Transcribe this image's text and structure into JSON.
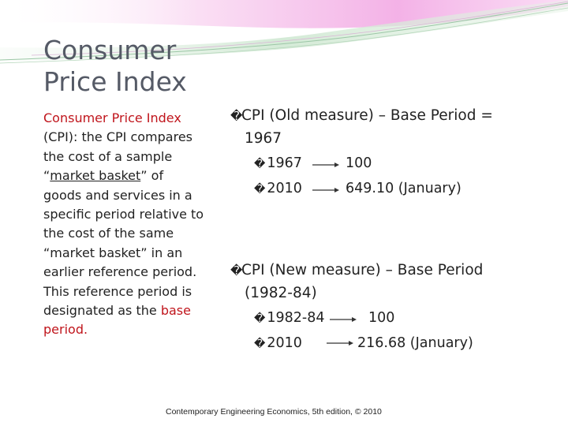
{
  "title": {
    "line1": "Consumer",
    "line2": "Price Index"
  },
  "left_text": {
    "l1": "Consumer Price Index",
    "l2": "(CPI): the CPI compares",
    "l3": "the cost of a sample",
    "l4_open": "“",
    "l4_ul": "market basket",
    "l4_close": "” of",
    "l5": " goods and services in a",
    "l6": "specific period relative to",
    "l7": " the cost of the same",
    "l8": "“market basket” in an",
    "l9": "earlier reference period.",
    "l10": "This reference period is",
    "l11_pre": "designated as the ",
    "l11_red": "base",
    "l12": "period."
  },
  "old_measure": {
    "bullet": "�",
    "line1": "CPI (Old measure) – Base Period =",
    "line2": "1967",
    "rows": [
      {
        "bullet": "�",
        "year": "1967",
        "value": "100"
      },
      {
        "bullet": "�",
        "year": "2010",
        "value": "649.10 (January)"
      }
    ]
  },
  "new_measure": {
    "bullet": "�",
    "line1": "CPI (New measure) – Base Period",
    "line2": "(1982-84)",
    "rows": [
      {
        "bullet": "�",
        "year": "1982-84",
        "value": "100"
      },
      {
        "bullet": "�",
        "year": "2010",
        "value": "216.68 (January)"
      }
    ]
  },
  "footer": "Contemporary Engineering Economics, 5th edition, © 2010",
  "colors": {
    "accent_red": "#c0151c",
    "title_gray": "#555a66",
    "swoosh_pink": "#f4b6e8",
    "swoosh_green": "#b8dcc0"
  }
}
